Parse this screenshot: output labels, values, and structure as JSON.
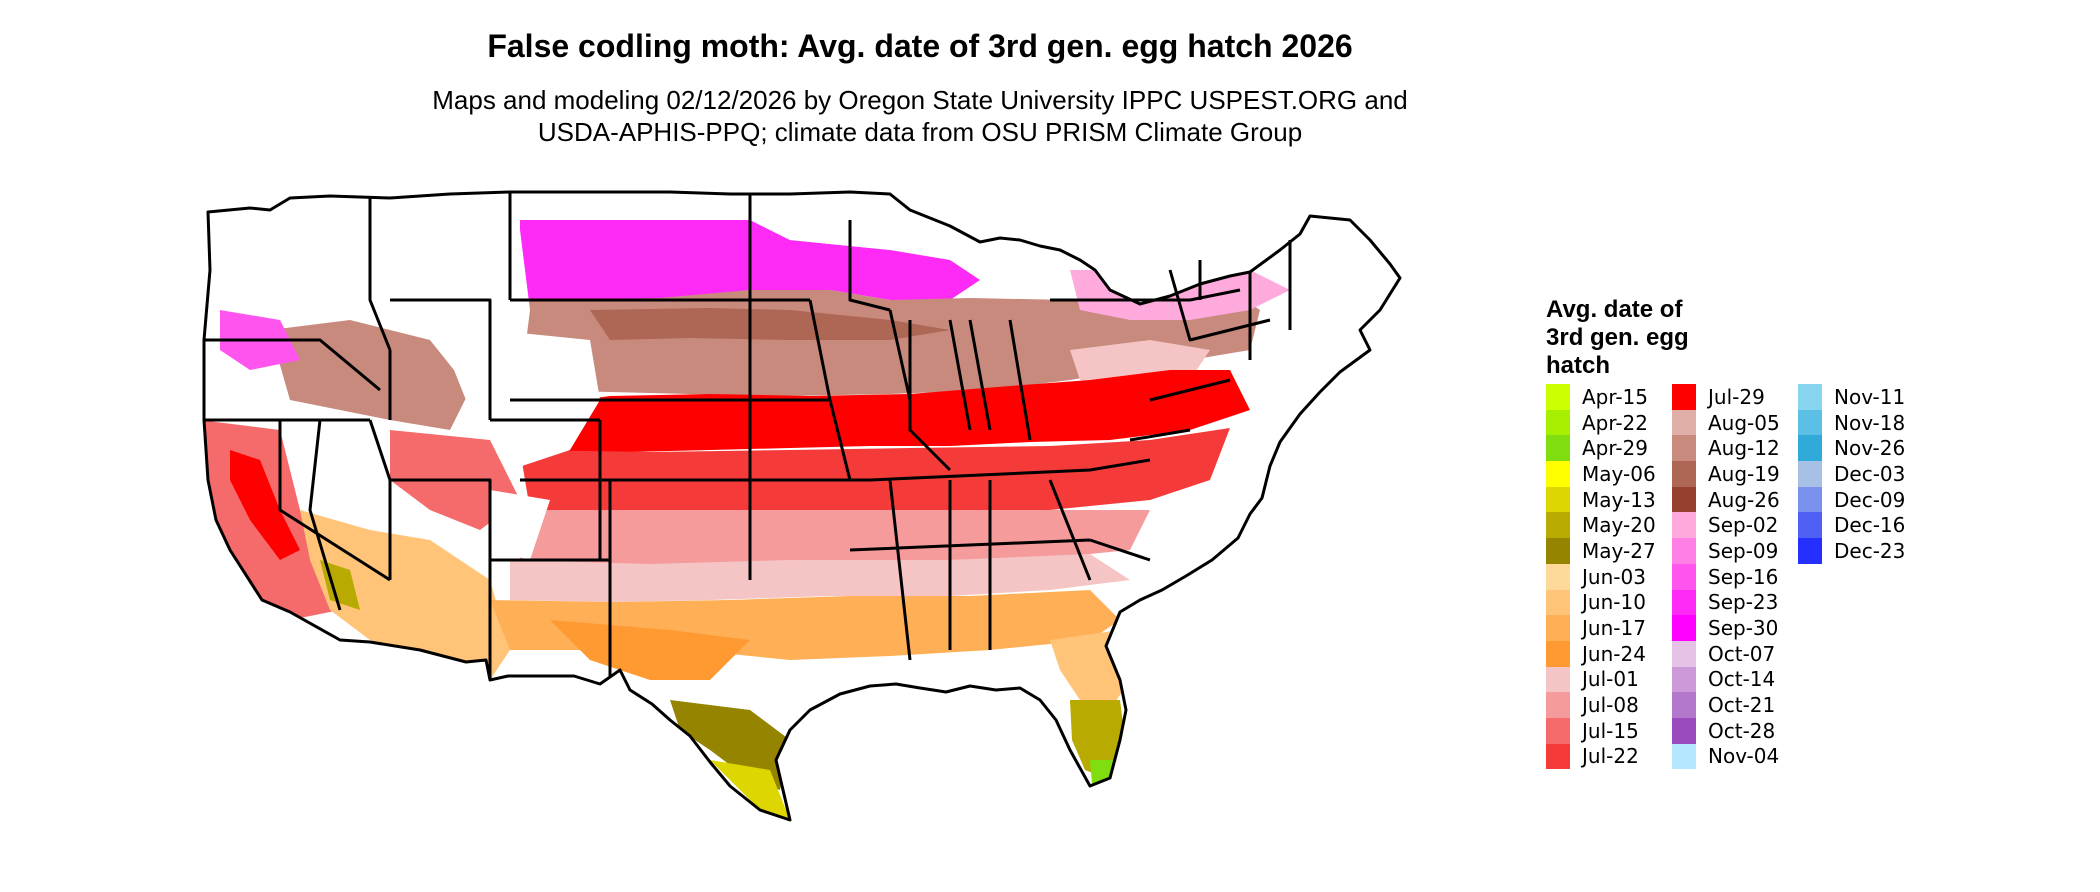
{
  "title": "False codling moth: Avg. date of 3rd gen. egg hatch 2026",
  "subtitle_line1": "Maps and modeling 02/12/2026 by Oregon State University IPPC USPEST.ORG and",
  "subtitle_line2": "USDA-APHIS-PPQ; climate data from OSU PRISM Climate Group",
  "legend": {
    "title_lines": [
      "Avg. date of",
      "3rd gen. egg",
      "hatch"
    ],
    "columns": [
      [
        {
          "label": "Apr-15",
          "color": "#ccff00"
        },
        {
          "label": "Apr-22",
          "color": "#a6ef00"
        },
        {
          "label": "Apr-29",
          "color": "#80dd10"
        },
        {
          "label": "May-06",
          "color": "#ffff00"
        },
        {
          "label": "May-13",
          "color": "#ddd600"
        },
        {
          "label": "May-20",
          "color": "#b8aa00"
        },
        {
          "label": "May-27",
          "color": "#958400"
        },
        {
          "label": "Jun-03",
          "color": "#ffd99a"
        },
        {
          "label": "Jun-10",
          "color": "#ffc477"
        },
        {
          "label": "Jun-17",
          "color": "#ffaf55"
        },
        {
          "label": "Jun-24",
          "color": "#ff9a33"
        },
        {
          "label": "Jul-01",
          "color": "#f5c5c5"
        },
        {
          "label": "Jul-08",
          "color": "#f59b9b"
        },
        {
          "label": "Jul-15",
          "color": "#f56a6a"
        },
        {
          "label": "Jul-22",
          "color": "#f53a3a"
        }
      ],
      [
        {
          "label": "Jul-29",
          "color": "#ff0000"
        },
        {
          "label": "Aug-05",
          "color": "#e0b0a8"
        },
        {
          "label": "Aug-12",
          "color": "#c78a7d"
        },
        {
          "label": "Aug-19",
          "color": "#ae6655"
        },
        {
          "label": "Aug-26",
          "color": "#96412f"
        },
        {
          "label": "Sep-02",
          "color": "#ffaadd"
        },
        {
          "label": "Sep-09",
          "color": "#ff7fe6"
        },
        {
          "label": "Sep-16",
          "color": "#ff55ee"
        },
        {
          "label": "Sep-23",
          "color": "#ff2af6"
        },
        {
          "label": "Sep-30",
          "color": "#ff00ff"
        },
        {
          "label": "Oct-07",
          "color": "#e6c3e6"
        },
        {
          "label": "Oct-14",
          "color": "#cc99d9"
        },
        {
          "label": "Oct-21",
          "color": "#b377cc"
        },
        {
          "label": "Oct-28",
          "color": "#9a4cbf"
        },
        {
          "label": "Nov-04",
          "color": "#b3e8ff"
        }
      ],
      [
        {
          "label": "Nov-11",
          "color": "#88d5f2"
        },
        {
          "label": "Nov-18",
          "color": "#5cc0e6"
        },
        {
          "label": "Nov-26",
          "color": "#30abd9"
        },
        {
          "label": "Dec-03",
          "color": "#a7c0e6"
        },
        {
          "label": "Dec-09",
          "color": "#7b91ee"
        },
        {
          "label": "Dec-16",
          "color": "#5060f5"
        },
        {
          "label": "Dec-23",
          "color": "#2530ff"
        }
      ]
    ]
  }
}
